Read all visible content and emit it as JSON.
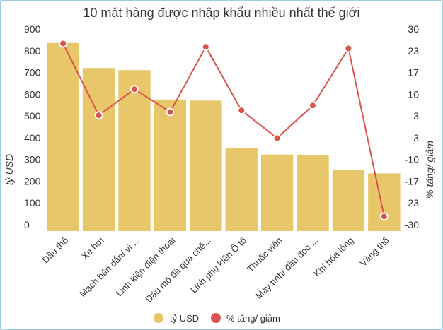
{
  "chart_data": {
    "type": "bar+line",
    "title": "10 mặt hàng được nhập khẩu nhiều nhất thế giới",
    "categories": [
      "Dầu thô",
      "Xe hơi",
      "Mạch bán dẫn/ vi ...",
      "Linh kiện điện thoại",
      "Dầu mỏ đã qua chế...",
      "Linh phụ kiện Ô tô",
      "Thuốc viên",
      "Máy tính/ đầu đọc ...",
      "Khí hóa lỏng",
      "Vàng thô"
    ],
    "ylabel_left": "tỷ USD",
    "ylabel_right": "% tăng/ giảm",
    "ylim_left": [
      0,
      900
    ],
    "yticks_left": [
      "0",
      "100",
      "200",
      "300",
      "400",
      "500",
      "600",
      "700",
      "800",
      "900"
    ],
    "ylim_right": [
      -30,
      30
    ],
    "yticks_right": [
      "-30",
      "-23",
      "-17",
      "-10",
      "-3",
      "3",
      "10",
      "17",
      "23",
      "30"
    ],
    "series": [
      {
        "name": "tỷ USD",
        "type": "bar",
        "color": "#e8c66a",
        "values": [
          865,
          750,
          740,
          605,
          600,
          382,
          352,
          348,
          280,
          265
        ]
      },
      {
        "name": "% tăng/ giảm",
        "type": "line",
        "color": "#d9534f",
        "values": [
          27.5,
          5.5,
          13.5,
          6.5,
          26.5,
          7.0,
          -1.5,
          8.5,
          26.0,
          -25.5
        ]
      }
    ],
    "grid": false,
    "legend": "bottom"
  }
}
